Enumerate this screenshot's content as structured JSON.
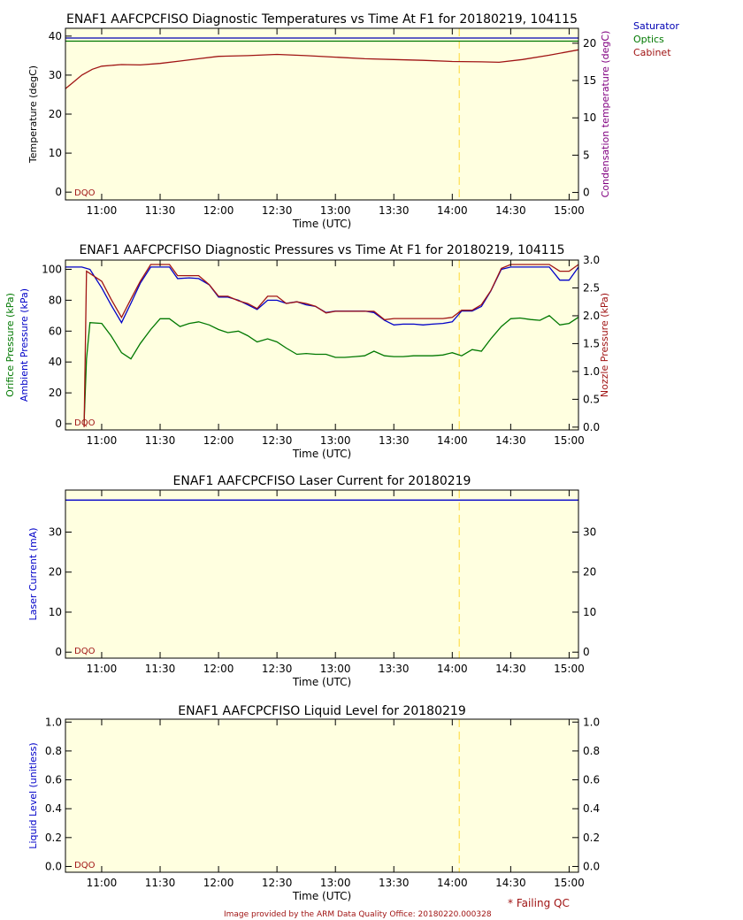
{
  "legend": [
    {
      "label": "Saturator",
      "color": "#0000b4"
    },
    {
      "label": "Optics",
      "color": "#007800"
    },
    {
      "label": "Cabinet",
      "color": "#a01414"
    }
  ],
  "footer": {
    "credit": "Image provided by the ARM Data Quality Office: 20180220.000328",
    "failing_qc": "* Failing QC",
    "dqo": "DQO"
  },
  "colors": {
    "plot_bg": "#ffffe0",
    "dashed_marker": "#ffe05a",
    "saturator": "#0000b4",
    "optics": "#007800",
    "cabinet": "#a01414",
    "ambient": "#0000c8",
    "orifice": "#007800",
    "nozzle": "#a01414",
    "laser": "#0000c8",
    "condensation_axis": "#800080",
    "credit": "#a01414"
  },
  "chart_data": [
    {
      "type": "line",
      "title": "ENAF1 AAFCPCFISO Diagnostic Temperatures vs Time At F1 for 20180219, 104115",
      "xlabel": "Time (UTC)",
      "ylabel": "Temperature (degC)",
      "y2label": "Condensation temperature (degC)",
      "xticks": [
        "11:00",
        "11:30",
        "12:00",
        "12:30",
        "13:00",
        "13:30",
        "14:00",
        "14:30",
        "15:00"
      ],
      "xlim": [
        10.69,
        15.08
      ],
      "ylim": [
        -2,
        42
      ],
      "yticks": [
        0,
        10,
        20,
        30,
        40
      ],
      "y2lim": [
        -1,
        22
      ],
      "y2ticks": [
        0,
        5,
        10,
        15,
        20
      ],
      "dashed_x": 14.06,
      "legend_position": "top-right outside",
      "series": [
        {
          "name": "Saturator",
          "x": [
            10.69,
            15.08
          ],
          "y": [
            39.5,
            39.5
          ]
        },
        {
          "name": "Optics",
          "x": [
            10.69,
            15.08
          ],
          "y": [
            38.7,
            38.7
          ]
        },
        {
          "name": "Cabinet",
          "x": [
            10.69,
            10.75,
            10.83,
            10.92,
            11.0,
            11.17,
            11.33,
            11.5,
            11.67,
            11.83,
            12.0,
            12.25,
            12.5,
            12.75,
            13.0,
            13.25,
            13.5,
            13.75,
            14.0,
            14.25,
            14.4,
            14.6,
            14.83,
            15.08
          ],
          "y": [
            26.5,
            28.0,
            30.0,
            31.5,
            32.3,
            32.7,
            32.6,
            33.0,
            33.6,
            34.2,
            34.8,
            35.0,
            35.3,
            35.0,
            34.6,
            34.2,
            34.0,
            33.8,
            33.5,
            33.4,
            33.3,
            34.0,
            35.1,
            36.5
          ]
        }
      ]
    },
    {
      "type": "line",
      "title": "ENAF1 AAFCPCFISO Diagnostic Pressures vs Time At F1 for 20180219, 104115",
      "xlabel": "Time (UTC)",
      "ylabel": "Ambient Pressure (kPa)",
      "ylabel2": "Orifice Pressure (kPa)",
      "y2label": "Nozzle Pressure (kPa)",
      "xticks": [
        "11:00",
        "11:30",
        "12:00",
        "12:30",
        "13:00",
        "13:30",
        "14:00",
        "14:30",
        "15:00"
      ],
      "xlim": [
        10.69,
        15.08
      ],
      "ylim": [
        -4,
        106
      ],
      "yticks": [
        0,
        20,
        40,
        60,
        80,
        100
      ],
      "y2lim": [
        -0.05,
        3.0
      ],
      "y2ticks": [
        "0.0",
        "0.5",
        "1.0",
        "1.5",
        "2.0",
        "2.5",
        "3.0"
      ],
      "dashed_x": 14.06,
      "series": [
        {
          "name": "Ambient Pressure",
          "x": [
            10.69,
            10.83,
            10.9,
            11.0,
            11.08,
            11.17,
            11.25,
            11.33,
            11.42,
            11.5,
            11.58,
            11.65,
            11.75,
            11.83,
            11.92,
            12.0,
            12.08,
            12.17,
            12.25,
            12.33,
            12.42,
            12.5,
            12.58,
            12.67,
            12.75,
            12.83,
            12.92,
            13.0,
            13.08,
            13.17,
            13.25,
            13.33,
            13.42,
            13.5,
            13.58,
            13.67,
            13.75,
            13.83,
            13.92,
            14.0,
            14.08,
            14.17,
            14.25,
            14.33,
            14.42,
            14.5,
            14.58,
            14.67,
            14.75,
            14.83,
            14.92,
            15.0,
            15.08
          ],
          "y": [
            101.5,
            101.5,
            100.0,
            88.0,
            77.0,
            65.5,
            78.0,
            91.0,
            101.5,
            101.5,
            101.5,
            94.0,
            94.5,
            94.0,
            90.0,
            82.0,
            82.0,
            80.0,
            77.0,
            74.0,
            80.0,
            80.0,
            78.0,
            79.0,
            77.0,
            76.0,
            72.0,
            73.0,
            73.0,
            73.0,
            73.0,
            72.0,
            67.0,
            64.0,
            64.5,
            64.5,
            64.0,
            64.5,
            65.0,
            66.0,
            73.0,
            73.0,
            76.0,
            86.0,
            100.0,
            101.5,
            101.5,
            101.5,
            101.5,
            101.5,
            93.0,
            93.0,
            101.5
          ]
        },
        {
          "name": "Orifice Pressure",
          "x": [
            10.69,
            10.83,
            10.85,
            10.87,
            10.9,
            11.0,
            11.08,
            11.17,
            11.25,
            11.33,
            11.42,
            11.5,
            11.58,
            11.67,
            11.75,
            11.83,
            11.92,
            12.0,
            12.08,
            12.17,
            12.25,
            12.33,
            12.42,
            12.5,
            12.58,
            12.67,
            12.75,
            12.83,
            12.92,
            13.0,
            13.08,
            13.17,
            13.25,
            13.33,
            13.42,
            13.5,
            13.58,
            13.67,
            13.75,
            13.83,
            13.92,
            14.0,
            14.08,
            14.17,
            14.25,
            14.33,
            14.42,
            14.5,
            14.58,
            14.67,
            14.75,
            14.83,
            14.92,
            15.0,
            15.08
          ],
          "y": [
            null,
            null,
            1.0,
            42.0,
            65.5,
            65.0,
            57.0,
            46.0,
            42.0,
            52.0,
            61.0,
            68.0,
            68.0,
            63.0,
            65.0,
            66.0,
            64.0,
            61.0,
            59.0,
            60.0,
            57.0,
            53.0,
            55.0,
            53.0,
            49.0,
            45.0,
            45.5,
            45.0,
            45.0,
            43.0,
            43.0,
            43.5,
            44.0,
            47.0,
            44.0,
            43.5,
            43.5,
            44.0,
            44.0,
            44.0,
            44.5,
            46.0,
            44.0,
            48.0,
            47.0,
            55.0,
            63.0,
            68.0,
            68.5,
            67.5,
            67.0,
            70.0,
            64.0,
            65.0,
            69.0
          ]
        },
        {
          "name": "Nozzle Pressure",
          "x": [
            10.69,
            10.83,
            10.85,
            10.87,
            11.0,
            11.08,
            11.17,
            11.25,
            11.33,
            11.42,
            11.5,
            11.58,
            11.65,
            11.75,
            11.83,
            11.92,
            12.0,
            12.08,
            12.17,
            12.25,
            12.33,
            12.42,
            12.5,
            12.58,
            12.67,
            12.75,
            12.83,
            12.92,
            13.0,
            13.08,
            13.17,
            13.25,
            13.33,
            13.42,
            13.5,
            13.58,
            13.67,
            13.75,
            13.83,
            13.92,
            14.0,
            14.08,
            14.17,
            14.25,
            14.33,
            14.42,
            14.5,
            14.58,
            14.67,
            14.75,
            14.83,
            14.92,
            15.0,
            15.08
          ],
          "y": [
            null,
            null,
            0.0,
            2.8,
            2.62,
            2.3,
            1.97,
            2.3,
            2.62,
            2.92,
            2.92,
            2.92,
            2.72,
            2.72,
            2.72,
            2.56,
            2.35,
            2.35,
            2.27,
            2.22,
            2.13,
            2.35,
            2.35,
            2.22,
            2.25,
            2.22,
            2.17,
            2.05,
            2.08,
            2.08,
            2.08,
            2.08,
            2.08,
            1.93,
            1.95,
            1.95,
            1.95,
            1.95,
            1.95,
            1.95,
            1.97,
            2.1,
            2.1,
            2.2,
            2.45,
            2.85,
            2.92,
            2.92,
            2.92,
            2.92,
            2.92,
            2.8,
            2.8,
            2.92
          ]
        }
      ]
    },
    {
      "type": "line",
      "title": "ENAF1 AAFCPCFISO Laser Current for 20180219",
      "xlabel": "Time (UTC)",
      "ylabel": "Laser Current (mA)",
      "xticks": [
        "11:00",
        "11:30",
        "12:00",
        "12:30",
        "13:00",
        "13:30",
        "14:00",
        "14:30",
        "15:00"
      ],
      "xlim": [
        10.69,
        15.08
      ],
      "ylim": [
        -1.5,
        40.5
      ],
      "yticks": [
        0,
        10,
        20,
        30
      ],
      "dashed_x": 14.06,
      "series": [
        {
          "name": "Laser Current",
          "x": [
            10.69,
            15.08
          ],
          "y": [
            38.0,
            38.0
          ]
        }
      ]
    },
    {
      "type": "line",
      "title": "ENAF1 AAFCPCFISO Liquid Level for 20180219",
      "xlabel": "Time (UTC)",
      "ylabel": "Liquid Level (unitless)",
      "xticks": [
        "11:00",
        "11:30",
        "12:00",
        "12:30",
        "13:00",
        "13:30",
        "14:00",
        "14:30",
        "15:00"
      ],
      "xlim": [
        10.69,
        15.08
      ],
      "ylim": [
        -0.04,
        1.02
      ],
      "yticks": [
        "0.0",
        "0.2",
        "0.4",
        "0.6",
        "0.8",
        "1.0"
      ],
      "dashed_x": 14.06,
      "series": []
    }
  ]
}
